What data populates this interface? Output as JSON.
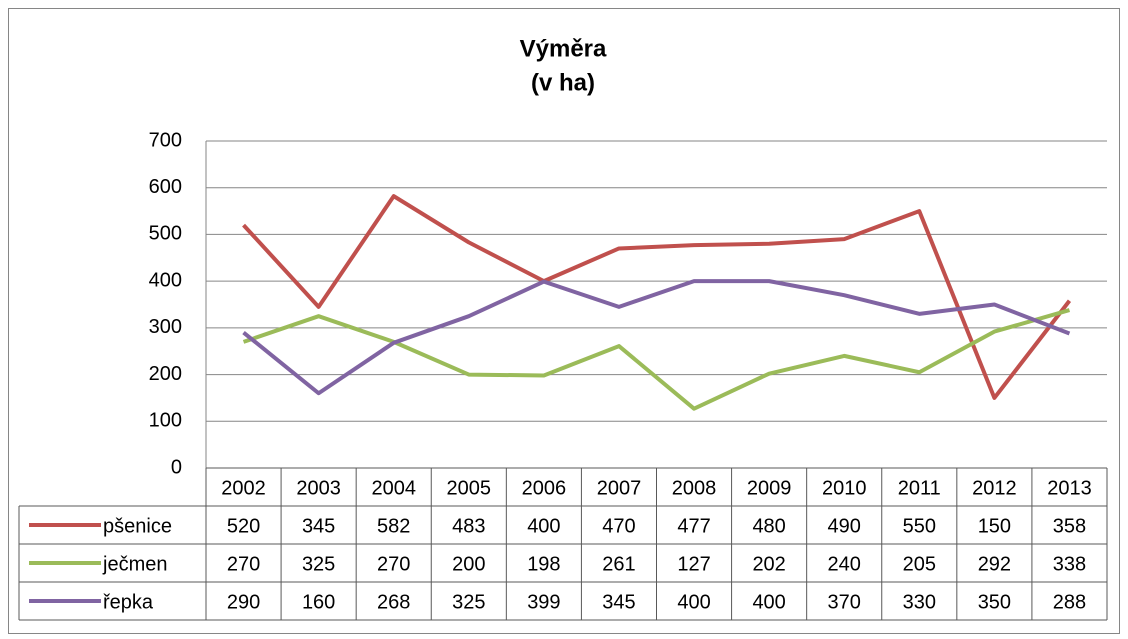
{
  "chart_data": {
    "type": "line",
    "title": "Výměra",
    "subtitle": "(v ha)",
    "categories": [
      "2002",
      "2003",
      "2004",
      "2005",
      "2006",
      "2007",
      "2008",
      "2009",
      "2010",
      "2011",
      "2012",
      "2013"
    ],
    "series": [
      {
        "name": "pšenice",
        "color": "#c0504d",
        "values": [
          520,
          345,
          582,
          483,
          400,
          470,
          477,
          480,
          490,
          550,
          150,
          358
        ]
      },
      {
        "name": "ječmen",
        "color": "#9bbb59",
        "values": [
          270,
          325,
          270,
          200,
          198,
          261,
          127,
          202,
          240,
          205,
          292,
          338
        ]
      },
      {
        "name": "řepka",
        "color": "#8064a2",
        "values": [
          290,
          160,
          268,
          325,
          399,
          345,
          400,
          400,
          370,
          330,
          350,
          288
        ]
      }
    ],
    "ylim": [
      0,
      700
    ],
    "yticks": [
      0,
      100,
      200,
      300,
      400,
      500,
      600,
      700
    ],
    "grid": true,
    "data_table": true
  }
}
